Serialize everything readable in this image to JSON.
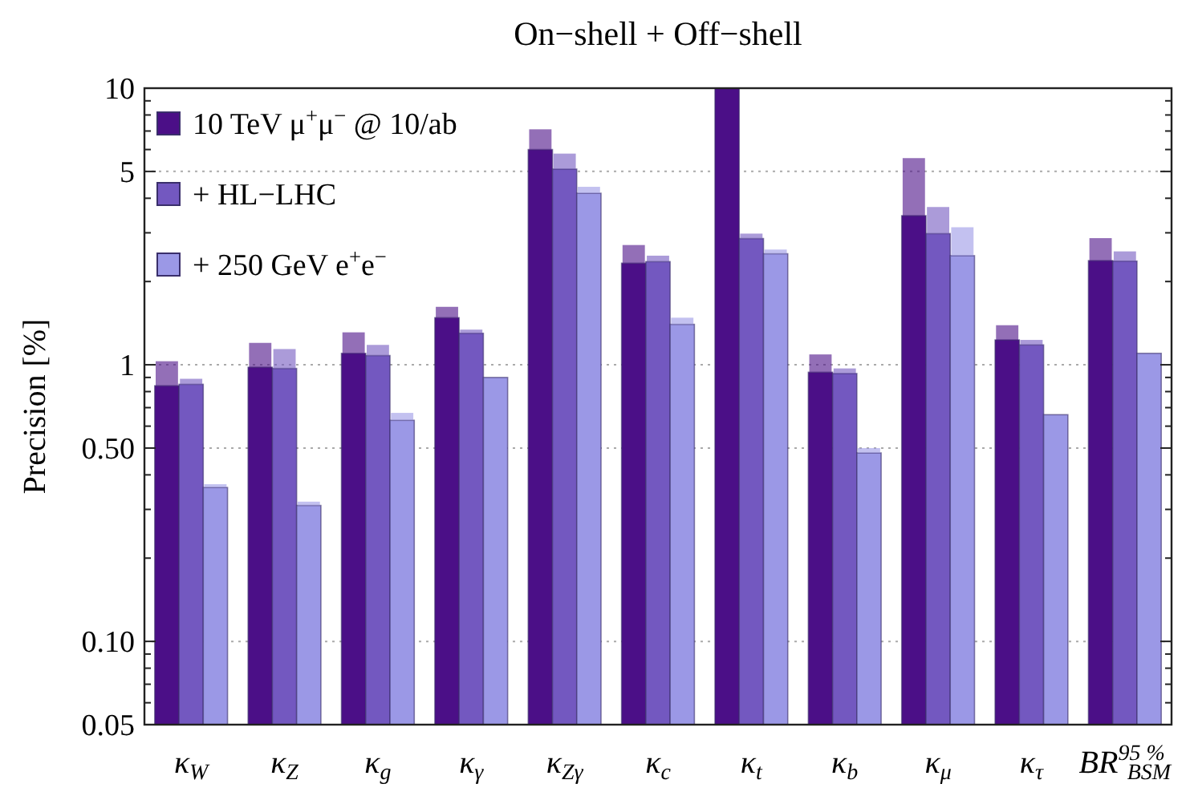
{
  "chart_data": {
    "type": "bar",
    "title": "On−shell + Off−shell",
    "ylabel": "Precision [%]",
    "categories": [
      "κ$_{W}$",
      "κ$_{Z}$",
      "κ$_{g}$",
      "κ$_{γ}$",
      "κ$_{Zγ}$",
      "κ$_{c}$",
      "κ$_{t}$",
      "κ$_{b}$",
      "κ$_{μ}$",
      "κ$_{τ}$",
      "BR$^{95 %}$$_{BSM}$"
    ],
    "log": "y",
    "grid": "y",
    "legend": "top left",
    "ylim": [
      0.05,
      10
    ],
    "yticks": [
      0.05,
      {
        "value": 0.06,
        "label": null
      },
      {
        "value": 0.07,
        "label": null
      },
      {
        "value": 0.08,
        "label": null
      },
      {
        "value": 0.09,
        "label": null
      },
      {
        "value": 0.1,
        "label": "0.10"
      },
      {
        "value": 0.2,
        "label": null
      },
      {
        "value": 0.3,
        "label": null
      },
      {
        "value": 0.4,
        "label": null
      },
      {
        "value": 0.5,
        "label": "0.50"
      },
      {
        "value": 0.6,
        "label": null
      },
      {
        "value": 0.7,
        "label": null
      },
      {
        "value": 0.8,
        "label": null
      },
      {
        "value": 0.9,
        "label": null
      },
      1,
      {
        "value": 2,
        "label": null
      },
      {
        "value": 3,
        "label": null
      },
      {
        "value": 4,
        "label": null
      },
      5,
      {
        "value": 6,
        "label": null
      },
      {
        "value": 7,
        "label": null
      },
      {
        "value": 8,
        "label": null
      },
      {
        "value": 9,
        "label": null
      },
      10
    ],
    "series": [
      {
        "name": "10 TeV μ$^{+}$μ$^{−}$ @ 10/ab",
        "color": "#4b0f87",
        "values": [
          0.84,
          0.98,
          1.1,
          1.48,
          6.0,
          2.33,
          10,
          0.94,
          3.46,
          1.23,
          2.38
        ],
        "errors": [
          [
            0.84,
            1.03
          ],
          [
            0.98,
            1.2
          ],
          [
            1.1,
            1.31
          ],
          [
            1.48,
            1.62
          ],
          [
            6.0,
            7.1
          ],
          [
            2.33,
            2.71
          ],
          null,
          [
            0.94,
            1.09
          ],
          [
            3.46,
            5.59
          ],
          [
            1.23,
            1.39
          ],
          [
            2.38,
            2.87
          ]
        ]
      },
      {
        "name": "+ HL−LHC",
        "color": "#7358c0",
        "values": [
          0.85,
          0.97,
          1.08,
          1.3,
          5.1,
          2.36,
          2.86,
          0.93,
          2.98,
          1.18,
          2.37
        ],
        "errors": [
          [
            0.85,
            0.89
          ],
          [
            0.97,
            1.14
          ],
          [
            1.08,
            1.18
          ],
          [
            1.3,
            1.34
          ],
          [
            5.1,
            5.8
          ],
          [
            2.36,
            2.48
          ],
          [
            2.86,
            2.98
          ],
          [
            0.93,
            0.97
          ],
          [
            2.98,
            3.72
          ],
          [
            1.18,
            1.23
          ],
          [
            2.37,
            2.57
          ]
        ]
      },
      {
        "name": "+ 250 GeV e$^{+}$e$^{−}$",
        "color": "#9b98e6",
        "values": [
          0.36,
          0.31,
          0.63,
          0.9,
          4.17,
          1.4,
          2.52,
          0.48,
          2.48,
          0.66,
          1.1
        ],
        "errors": [
          [
            0.36,
            0.37
          ],
          [
            0.31,
            0.32
          ],
          [
            0.63,
            0.67
          ],
          null,
          [
            4.17,
            4.4
          ],
          [
            1.4,
            1.48
          ],
          [
            2.52,
            2.61
          ],
          [
            0.48,
            0.5
          ],
          [
            2.48,
            3.14
          ],
          null,
          null
        ]
      }
    ]
  }
}
